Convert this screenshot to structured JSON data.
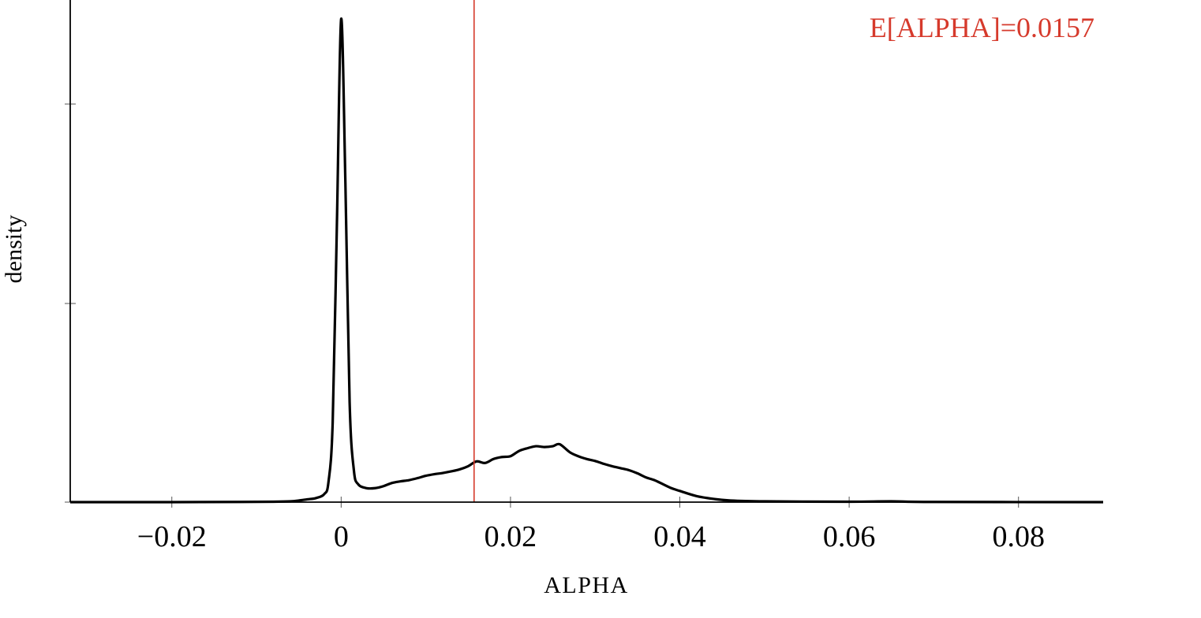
{
  "chart_data": {
    "type": "line",
    "title": "",
    "xlabel": "ALPHA",
    "ylabel": "density",
    "xlim": [
      -0.032,
      0.09
    ],
    "ylim": [
      0,
      1.22
    ],
    "x_ticks": [
      -0.02,
      0,
      0.02,
      0.04,
      0.06,
      0.08
    ],
    "x_tick_labels": [
      "−0.02",
      "0",
      "0.02",
      "0.04",
      "0.06",
      "0.08"
    ],
    "y_ticks": [
      0,
      0.5,
      1.0
    ],
    "y_tick_labels": [
      "",
      "",
      ""
    ],
    "grid": false,
    "series": [
      {
        "x": [
          -0.032,
          -0.02,
          -0.012,
          -0.008,
          -0.006,
          -0.005,
          -0.004,
          -0.003,
          -0.002,
          -0.0015,
          -0.001,
          -0.0005,
          0,
          0.0005,
          0.001,
          0.0015,
          0.002,
          0.003,
          0.004,
          0.005,
          0.006,
          0.007,
          0.008,
          0.009,
          0.01,
          0.011,
          0.012,
          0.013,
          0.014,
          0.015,
          0.016,
          0.017,
          0.018,
          0.019,
          0.02,
          0.021,
          0.022,
          0.023,
          0.024,
          0.025,
          0.0258,
          0.027,
          0.028,
          0.029,
          0.03,
          0.031,
          0.032,
          0.033,
          0.034,
          0.035,
          0.036,
          0.037,
          0.038,
          0.039,
          0.04,
          0.042,
          0.044,
          0.046,
          0.05,
          0.06,
          0.065,
          0.07,
          0.09
        ],
        "values": [
          0.0,
          0.0,
          0.0005,
          0.001,
          0.002,
          0.004,
          0.007,
          0.01,
          0.02,
          0.05,
          0.2,
          0.7,
          1.21,
          0.8,
          0.25,
          0.08,
          0.045,
          0.035,
          0.035,
          0.04,
          0.048,
          0.052,
          0.055,
          0.06,
          0.066,
          0.07,
          0.073,
          0.077,
          0.082,
          0.09,
          0.102,
          0.098,
          0.108,
          0.113,
          0.115,
          0.128,
          0.135,
          0.14,
          0.138,
          0.14,
          0.145,
          0.125,
          0.115,
          0.108,
          0.103,
          0.096,
          0.09,
          0.085,
          0.08,
          0.072,
          0.062,
          0.055,
          0.045,
          0.035,
          0.028,
          0.015,
          0.008,
          0.004,
          0.002,
          0.001,
          0.002,
          0.0005,
          0.0
        ]
      }
    ],
    "vline": {
      "x": 0.0157,
      "color": "#d63a2c"
    },
    "annotation": {
      "text": "E[ALPHA]=0.0157",
      "color": "#d63a2c",
      "placement": "top-right"
    },
    "line_color": "#000000"
  }
}
